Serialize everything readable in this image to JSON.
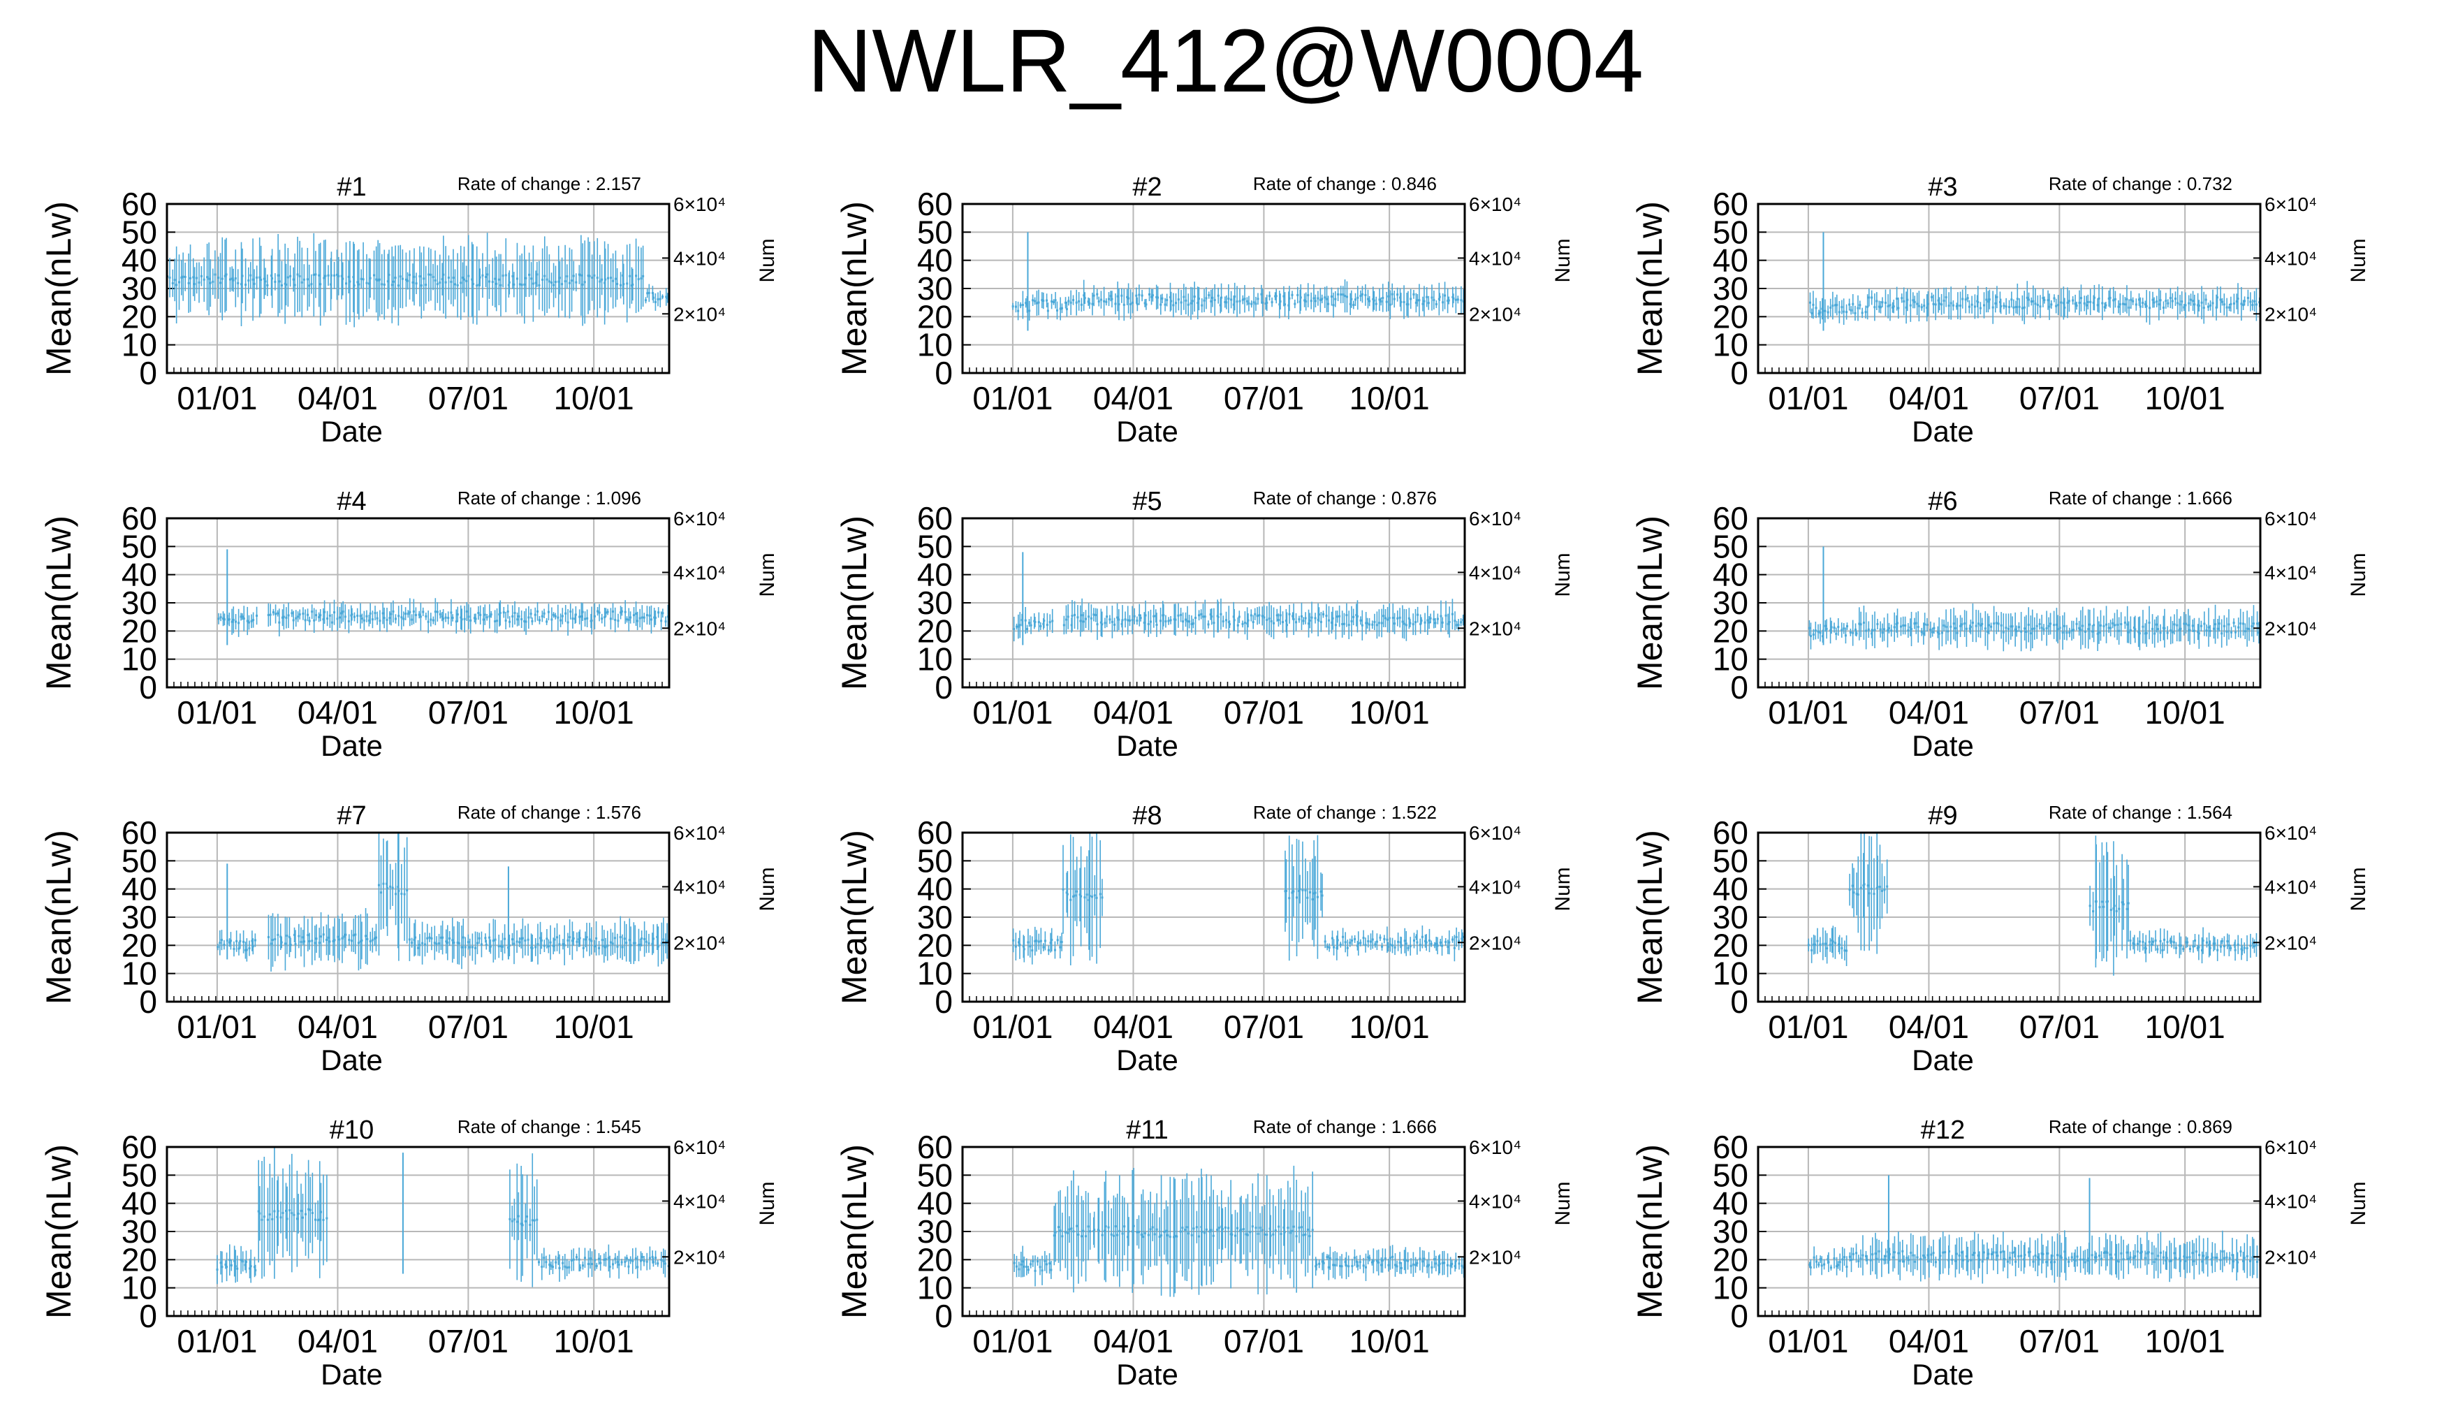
{
  "title": "NWLR_412@W0004",
  "chart_data": [
    {
      "type": "line",
      "title": "#1",
      "rate_label": "Rate of change : 2.157",
      "xlabel": "Date",
      "ylabel": "Mean(nLw)",
      "y2label": "Num",
      "ylim": [
        0,
        60
      ],
      "yticks": [
        0,
        10,
        20,
        30,
        40,
        50,
        60
      ],
      "xticks": [
        "01/01",
        "04/01",
        "07/01",
        "10/01"
      ],
      "y2ticks": [
        "2×10⁴",
        "4×10⁴",
        "6×10⁴"
      ],
      "grid": true,
      "level_mean": 33,
      "spread": 16,
      "color": "#4aa8d8",
      "segments": [
        {
          "start": 0.0,
          "end": 0.95,
          "mean": 33,
          "amp": 15
        },
        {
          "start": 0.95,
          "end": 1.0,
          "mean": 27,
          "amp": 4
        }
      ]
    },
    {
      "type": "line",
      "title": "#2",
      "rate_label": "Rate of change : 0.846",
      "xlabel": "Date",
      "ylabel": "Mean(nLw)",
      "y2label": "Num",
      "ylim": [
        0,
        60
      ],
      "yticks": [
        0,
        10,
        20,
        30,
        40,
        50,
        60
      ],
      "xticks": [
        "01/01",
        "04/01",
        "07/01",
        "10/01"
      ],
      "y2ticks": [
        "2×10⁴",
        "4×10⁴",
        "6×10⁴"
      ],
      "grid": true,
      "color": "#4aa8d8",
      "segments": [
        {
          "start": 0.1,
          "end": 0.22,
          "mean": 24,
          "amp": 5
        },
        {
          "start": 0.22,
          "end": 1.0,
          "mean": 26,
          "amp": 6
        }
      ],
      "spikes": [
        {
          "x": 0.13,
          "y": 50
        }
      ]
    },
    {
      "type": "line",
      "title": "#3",
      "rate_label": "Rate of change : 0.732",
      "xlabel": "Date",
      "ylabel": "Mean(nLw)",
      "y2label": "Num",
      "ylim": [
        0,
        60
      ],
      "yticks": [
        0,
        10,
        20,
        30,
        40,
        50,
        60
      ],
      "xticks": [
        "01/01",
        "04/01",
        "07/01",
        "10/01"
      ],
      "y2ticks": [
        "2×10⁴",
        "4×10⁴",
        "6×10⁴"
      ],
      "grid": true,
      "color": "#4aa8d8",
      "segments": [
        {
          "start": 0.1,
          "end": 0.22,
          "mean": 23,
          "amp": 5
        },
        {
          "start": 0.22,
          "end": 1.0,
          "mean": 25,
          "amp": 6
        }
      ],
      "spikes": [
        {
          "x": 0.13,
          "y": 50
        }
      ]
    },
    {
      "type": "line",
      "title": "#4",
      "rate_label": "Rate of change : 1.096",
      "xlabel": "Date",
      "ylabel": "Mean(nLw)",
      "y2label": "Num",
      "ylim": [
        0,
        60
      ],
      "yticks": [
        0,
        10,
        20,
        30,
        40,
        50,
        60
      ],
      "xticks": [
        "01/01",
        "04/01",
        "07/01",
        "10/01"
      ],
      "y2ticks": [
        "2×10⁴",
        "4×10⁴",
        "6×10⁴"
      ],
      "grid": true,
      "color": "#4aa8d8",
      "segments": [
        {
          "start": 0.1,
          "end": 0.18,
          "mean": 24,
          "amp": 5
        },
        {
          "start": 0.2,
          "end": 1.0,
          "mean": 25,
          "amp": 5
        }
      ],
      "spikes": [
        {
          "x": 0.12,
          "y": 49
        }
      ]
    },
    {
      "type": "line",
      "title": "#5",
      "rate_label": "Rate of change : 0.876",
      "xlabel": "Date",
      "ylabel": "Mean(nLw)",
      "y2label": "Num",
      "ylim": [
        0,
        60
      ],
      "yticks": [
        0,
        10,
        20,
        30,
        40,
        50,
        60
      ],
      "xticks": [
        "01/01",
        "04/01",
        "07/01",
        "10/01"
      ],
      "y2ticks": [
        "2×10⁴",
        "4×10⁴",
        "6×10⁴"
      ],
      "grid": true,
      "color": "#4aa8d8",
      "segments": [
        {
          "start": 0.1,
          "end": 0.18,
          "mean": 22,
          "amp": 5
        },
        {
          "start": 0.2,
          "end": 1.0,
          "mean": 24,
          "amp": 6
        }
      ],
      "spikes": [
        {
          "x": 0.12,
          "y": 48
        }
      ]
    },
    {
      "type": "line",
      "title": "#6",
      "rate_label": "Rate of change : 1.666",
      "xlabel": "Date",
      "ylabel": "Mean(nLw)",
      "y2label": "Num",
      "ylim": [
        0,
        60
      ],
      "yticks": [
        0,
        10,
        20,
        30,
        40,
        50,
        60
      ],
      "xticks": [
        "01/01",
        "04/01",
        "07/01",
        "10/01"
      ],
      "y2ticks": [
        "2×10⁴",
        "4×10⁴",
        "6×10⁴"
      ],
      "grid": true,
      "color": "#4aa8d8",
      "segments": [
        {
          "start": 0.1,
          "end": 0.2,
          "mean": 20,
          "amp": 5
        },
        {
          "start": 0.2,
          "end": 1.0,
          "mean": 21,
          "amp": 7
        }
      ],
      "spikes": [
        {
          "x": 0.13,
          "y": 50
        }
      ]
    },
    {
      "type": "line",
      "title": "#7",
      "rate_label": "Rate of change : 1.576",
      "xlabel": "Date",
      "ylabel": "Mean(nLw)",
      "y2label": "Num",
      "ylim": [
        0,
        60
      ],
      "yticks": [
        0,
        10,
        20,
        30,
        40,
        50,
        60
      ],
      "xticks": [
        "01/01",
        "04/01",
        "07/01",
        "10/01"
      ],
      "y2ticks": [
        "2×10⁴",
        "4×10⁴",
        "6×10⁴"
      ],
      "grid": true,
      "color": "#4aa8d8",
      "segments": [
        {
          "start": 0.1,
          "end": 0.18,
          "mean": 20,
          "amp": 5
        },
        {
          "start": 0.2,
          "end": 0.42,
          "mean": 22,
          "amp": 10
        },
        {
          "start": 0.42,
          "end": 0.48,
          "mean": 40,
          "amp": 25
        },
        {
          "start": 0.48,
          "end": 1.0,
          "mean": 21,
          "amp": 8
        }
      ],
      "spikes": [
        {
          "x": 0.12,
          "y": 49
        },
        {
          "x": 0.68,
          "y": 48
        }
      ]
    },
    {
      "type": "line",
      "title": "#8",
      "rate_label": "Rate of change : 1.522",
      "xlabel": "Date",
      "ylabel": "Mean(nLw)",
      "y2label": "Num",
      "ylim": [
        0,
        60
      ],
      "yticks": [
        0,
        10,
        20,
        30,
        40,
        50,
        60
      ],
      "xticks": [
        "01/01",
        "04/01",
        "07/01",
        "10/01"
      ],
      "y2ticks": [
        "2×10⁴",
        "4×10⁴",
        "6×10⁴"
      ],
      "grid": true,
      "color": "#4aa8d8",
      "segments": [
        {
          "start": 0.1,
          "end": 0.2,
          "mean": 20,
          "amp": 6
        },
        {
          "start": 0.2,
          "end": 0.28,
          "mean": 38,
          "amp": 24
        },
        {
          "start": 0.64,
          "end": 0.72,
          "mean": 38,
          "amp": 24
        },
        {
          "start": 0.72,
          "end": 1.0,
          "mean": 21,
          "amp": 5
        }
      ]
    },
    {
      "type": "line",
      "title": "#9",
      "rate_label": "Rate of change : 1.564",
      "xlabel": "Date",
      "ylabel": "Mean(nLw)",
      "y2label": "Num",
      "ylim": [
        0,
        60
      ],
      "yticks": [
        0,
        10,
        20,
        30,
        40,
        50,
        60
      ],
      "xticks": [
        "01/01",
        "04/01",
        "07/01",
        "10/01"
      ],
      "y2ticks": [
        "2×10⁴",
        "4×10⁴",
        "6×10⁴"
      ],
      "grid": true,
      "color": "#4aa8d8",
      "segments": [
        {
          "start": 0.1,
          "end": 0.18,
          "mean": 20,
          "amp": 6
        },
        {
          "start": 0.18,
          "end": 0.26,
          "mean": 40,
          "amp": 24
        },
        {
          "start": 0.66,
          "end": 0.74,
          "mean": 34,
          "amp": 24
        },
        {
          "start": 0.74,
          "end": 1.0,
          "mean": 20,
          "amp": 5
        }
      ]
    },
    {
      "type": "line",
      "title": "#10",
      "rate_label": "Rate of change : 1.545",
      "xlabel": "Date",
      "ylabel": "Mean(nLw)",
      "y2label": "Num",
      "ylim": [
        0,
        60
      ],
      "yticks": [
        0,
        10,
        20,
        30,
        40,
        50,
        60
      ],
      "xticks": [
        "01/01",
        "04/01",
        "07/01",
        "10/01"
      ],
      "y2ticks": [
        "2×10⁴",
        "4×10⁴",
        "6×10⁴"
      ],
      "grid": true,
      "color": "#4aa8d8",
      "segments": [
        {
          "start": 0.1,
          "end": 0.18,
          "mean": 18,
          "amp": 6
        },
        {
          "start": 0.18,
          "end": 0.32,
          "mean": 36,
          "amp": 24
        },
        {
          "start": 0.68,
          "end": 0.74,
          "mean": 34,
          "amp": 24
        },
        {
          "start": 0.74,
          "end": 1.0,
          "mean": 19,
          "amp": 5
        }
      ],
      "spikes": [
        {
          "x": 0.47,
          "y": 58
        }
      ]
    },
    {
      "type": "line",
      "title": "#11",
      "rate_label": "Rate of change : 1.666",
      "xlabel": "Date",
      "ylabel": "Mean(nLw)",
      "y2label": "Num",
      "ylim": [
        0,
        60
      ],
      "yticks": [
        0,
        10,
        20,
        30,
        40,
        50,
        60
      ],
      "xticks": [
        "01/01",
        "04/01",
        "07/01",
        "10/01"
      ],
      "y2ticks": [
        "2×10⁴",
        "4×10⁴",
        "6×10⁴"
      ],
      "grid": true,
      "color": "#4aa8d8",
      "segments": [
        {
          "start": 0.1,
          "end": 0.18,
          "mean": 18,
          "amp": 6
        },
        {
          "start": 0.18,
          "end": 0.7,
          "mean": 30,
          "amp": 22
        },
        {
          "start": 0.7,
          "end": 1.0,
          "mean": 19,
          "amp": 5
        }
      ]
    },
    {
      "type": "line",
      "title": "#12",
      "rate_label": "Rate of change : 0.869",
      "xlabel": "Date",
      "ylabel": "Mean(nLw)",
      "y2label": "Num",
      "ylim": [
        0,
        60
      ],
      "yticks": [
        0,
        10,
        20,
        30,
        40,
        50,
        60
      ],
      "xticks": [
        "01/01",
        "04/01",
        "07/01",
        "10/01"
      ],
      "y2ticks": [
        "2×10⁴",
        "4×10⁴",
        "6×10⁴"
      ],
      "grid": true,
      "color": "#4aa8d8",
      "segments": [
        {
          "start": 0.1,
          "end": 0.18,
          "mean": 19,
          "amp": 5
        },
        {
          "start": 0.18,
          "end": 1.0,
          "mean": 21,
          "amp": 8
        }
      ],
      "spikes": [
        {
          "x": 0.26,
          "y": 50
        },
        {
          "x": 0.66,
          "y": 49
        }
      ]
    }
  ]
}
